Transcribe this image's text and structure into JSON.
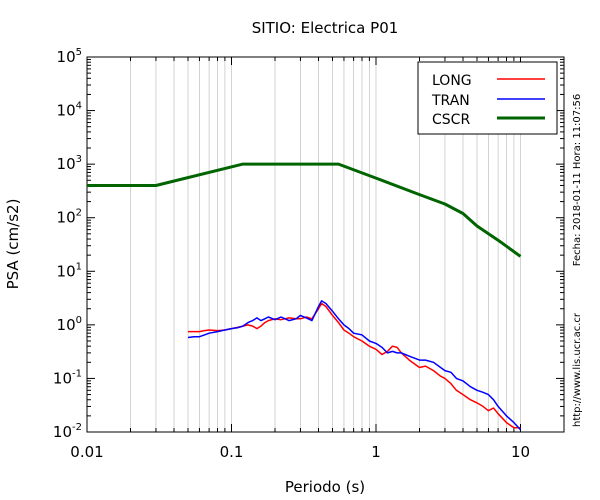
{
  "chart_data": {
    "type": "line",
    "title": "SITIO: Electrica P01",
    "xlabel": "Periodo (s)",
    "ylabel": "PSA (cm/s2)",
    "x_scale": "log",
    "y_scale": "log",
    "xlim": [
      0.01,
      20
    ],
    "ylim": [
      0.01,
      100000
    ],
    "x_ticks": [
      {
        "value": 0.01,
        "label": "0.01"
      },
      {
        "value": 0.1,
        "label": "0.1"
      },
      {
        "value": 1,
        "label": "1"
      },
      {
        "value": 10,
        "label": "10"
      }
    ],
    "y_ticks": [
      {
        "value": 0.01,
        "base": "10",
        "exp": "-2"
      },
      {
        "value": 0.1,
        "base": "10",
        "exp": "-1"
      },
      {
        "value": 1,
        "base": "10",
        "exp": "0"
      },
      {
        "value": 10,
        "base": "10",
        "exp": "1"
      },
      {
        "value": 100,
        "base": "10",
        "exp": "2"
      },
      {
        "value": 1000,
        "base": "10",
        "exp": "3"
      },
      {
        "value": 10000,
        "base": "10",
        "exp": "4"
      },
      {
        "value": 100000,
        "base": "10",
        "exp": "5"
      }
    ],
    "grid": "vertical-minor",
    "legend_position": "top-right",
    "side_texts": {
      "date": "Fecha: 2018-01-11  Hora: 11:07:56",
      "url": "http://www.lis.ucr.ac.cr"
    },
    "series": [
      {
        "name": "LONG",
        "color": "#ff0000",
        "x": [
          0.05,
          0.055,
          0.06,
          0.065,
          0.07,
          0.08,
          0.09,
          0.1,
          0.11,
          0.12,
          0.13,
          0.14,
          0.15,
          0.16,
          0.17,
          0.18,
          0.2,
          0.22,
          0.25,
          0.28,
          0.3,
          0.33,
          0.36,
          0.4,
          0.42,
          0.45,
          0.5,
          0.55,
          0.6,
          0.65,
          0.7,
          0.8,
          0.9,
          1.0,
          1.1,
          1.2,
          1.3,
          1.4,
          1.5,
          1.7,
          2.0,
          2.2,
          2.5,
          2.8,
          3.0,
          3.3,
          3.6,
          4.0,
          4.5,
          5.0,
          5.5,
          6.0,
          6.5,
          7.0,
          8.0,
          9.0,
          10.0
        ],
        "values": [
          0.75,
          0.75,
          0.75,
          0.78,
          0.8,
          0.78,
          0.8,
          0.85,
          0.9,
          0.95,
          1.0,
          0.95,
          0.85,
          0.95,
          1.1,
          1.2,
          1.3,
          1.25,
          1.35,
          1.3,
          1.3,
          1.4,
          1.3,
          2.0,
          2.5,
          2.2,
          1.5,
          1.1,
          0.8,
          0.7,
          0.6,
          0.5,
          0.4,
          0.35,
          0.28,
          0.32,
          0.4,
          0.38,
          0.3,
          0.22,
          0.16,
          0.17,
          0.14,
          0.11,
          0.1,
          0.08,
          0.06,
          0.05,
          0.04,
          0.035,
          0.03,
          0.025,
          0.028,
          0.022,
          0.015,
          0.012,
          0.012
        ]
      },
      {
        "name": "TRAN",
        "color": "#0000ff",
        "x": [
          0.05,
          0.055,
          0.06,
          0.065,
          0.07,
          0.08,
          0.09,
          0.1,
          0.11,
          0.12,
          0.13,
          0.14,
          0.15,
          0.16,
          0.17,
          0.18,
          0.2,
          0.22,
          0.25,
          0.28,
          0.3,
          0.33,
          0.36,
          0.4,
          0.42,
          0.45,
          0.5,
          0.55,
          0.6,
          0.65,
          0.7,
          0.8,
          0.9,
          1.0,
          1.1,
          1.2,
          1.3,
          1.4,
          1.5,
          1.7,
          2.0,
          2.2,
          2.5,
          2.8,
          3.0,
          3.3,
          3.6,
          4.0,
          4.5,
          5.0,
          5.5,
          6.0,
          6.5,
          7.0,
          8.0,
          9.0,
          10.0
        ],
        "values": [
          0.58,
          0.6,
          0.6,
          0.65,
          0.7,
          0.75,
          0.8,
          0.85,
          0.88,
          0.95,
          1.1,
          1.2,
          1.35,
          1.2,
          1.3,
          1.4,
          1.25,
          1.4,
          1.2,
          1.3,
          1.5,
          1.35,
          1.2,
          2.2,
          2.8,
          2.5,
          1.8,
          1.3,
          1.0,
          0.85,
          0.7,
          0.65,
          0.5,
          0.45,
          0.38,
          0.3,
          0.32,
          0.3,
          0.3,
          0.26,
          0.22,
          0.22,
          0.2,
          0.16,
          0.14,
          0.13,
          0.1,
          0.09,
          0.07,
          0.06,
          0.055,
          0.05,
          0.04,
          0.03,
          0.02,
          0.015,
          0.011
        ]
      },
      {
        "name": "CSCR",
        "color": "#006400",
        "x": [
          0.01,
          0.03,
          0.12,
          0.55,
          1.0,
          2.0,
          3.0,
          4.0,
          5.0,
          7.0,
          10.0
        ],
        "values": [
          400,
          400,
          1000,
          1000,
          550,
          270,
          180,
          120,
          70,
          38,
          19
        ]
      }
    ]
  }
}
